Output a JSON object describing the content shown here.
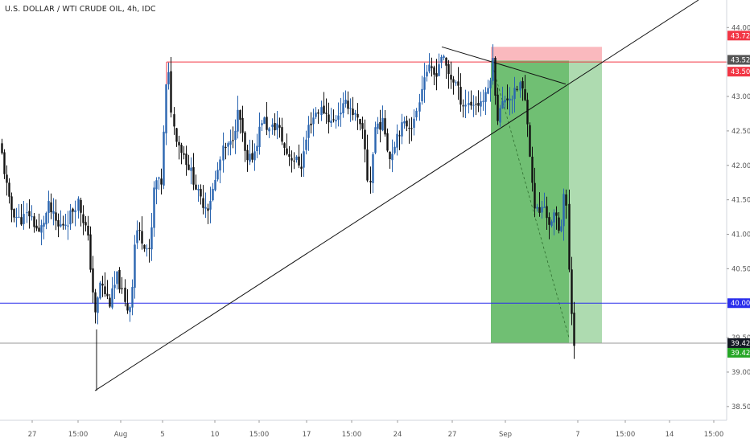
{
  "header": {
    "symbol_title": "U.S. DOLLAR / WTI CRUDE OIL, 4h, IDC"
  },
  "chart_data": {
    "type": "candlestick",
    "ylim": [
      38.3,
      44.4
    ],
    "y_ticks": [
      "44.00",
      "43.50",
      "43.00",
      "42.50",
      "42.00",
      "41.50",
      "41.00",
      "40.50",
      "40.00",
      "39.50",
      "39.00",
      "38.50"
    ],
    "x_ticks": [
      "27",
      "15:00",
      "Aug",
      "5",
      "10",
      "15:00",
      "17",
      "15:00",
      "24",
      "27",
      "Sep",
      "7",
      "15:00",
      "14",
      "15:00"
    ],
    "price_badges": [
      {
        "label": "43.72",
        "value": 43.72,
        "color": "#f23645"
      },
      {
        "label": "43.52",
        "value": 43.52,
        "color": "#555555"
      },
      {
        "label": "43.50",
        "value": 43.5,
        "color": "#f23645"
      },
      {
        "label": "40.00",
        "value": 40.0,
        "color": "#2a2eec"
      },
      {
        "label": "39.42",
        "value": 39.42,
        "color": "#131722"
      },
      {
        "label": "39.42",
        "value": 39.42,
        "color": "#26a626"
      }
    ],
    "horizontal_lines": [
      {
        "name": "resistance",
        "value": 43.5,
        "color": "#f23645"
      },
      {
        "name": "support",
        "value": 40.0,
        "color": "#2a2eec"
      },
      {
        "name": "last-price",
        "value": 39.42,
        "color": "#999999"
      }
    ],
    "position": {
      "entry": 43.52,
      "stop": 43.72,
      "target": 39.42
    },
    "colors": {
      "up": "#2a65b0",
      "down": "#111111"
    }
  }
}
